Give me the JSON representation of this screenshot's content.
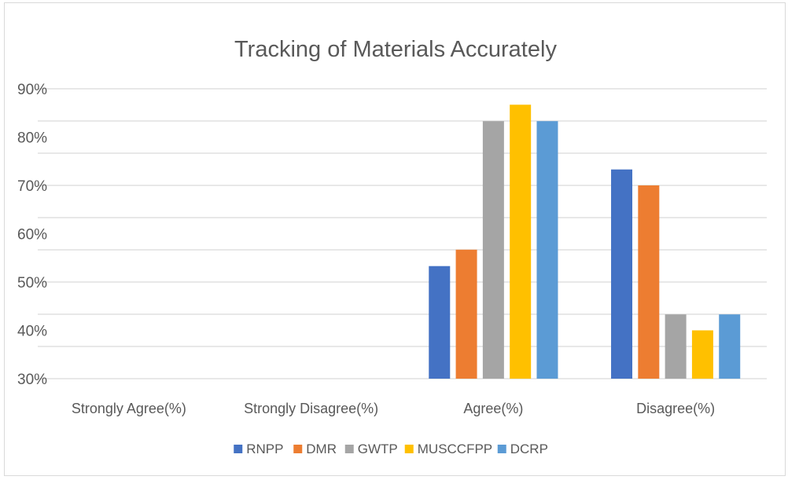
{
  "chart_data": {
    "type": "bar",
    "title": "Tracking of Materials Accurately",
    "xlabel": "",
    "ylabel": "",
    "categories": [
      "Strongly Agree(%)",
      "Strongly Disagree(%)",
      "Agree(%)",
      "Disagree(%)"
    ],
    "series": [
      {
        "name": "RNPP",
        "color": "#4472C4",
        "values": [
          null,
          null,
          53.3,
          73.3
        ]
      },
      {
        "name": "DMR",
        "color": "#ED7D31",
        "values": [
          null,
          null,
          56.7,
          70
        ]
      },
      {
        "name": "GWTP",
        "color": "#A5A5A5",
        "values": [
          null,
          null,
          83.3,
          43.3
        ]
      },
      {
        "name": "MUSCCFPP",
        "color": "#FFC000",
        "values": [
          null,
          null,
          86.7,
          40
        ]
      },
      {
        "name": "DCRP",
        "color": "#5B9BD5",
        "values": [
          null,
          null,
          83.3,
          43.3
        ]
      }
    ],
    "ylim": [
      30,
      90
    ],
    "yticks": [
      "30%",
      "40%",
      "50%",
      "60%",
      "70%",
      "80%",
      "90%"
    ],
    "ytick_values": [
      30,
      40,
      50,
      60,
      70,
      80,
      90
    ],
    "grid": true,
    "legend": "bottom"
  }
}
